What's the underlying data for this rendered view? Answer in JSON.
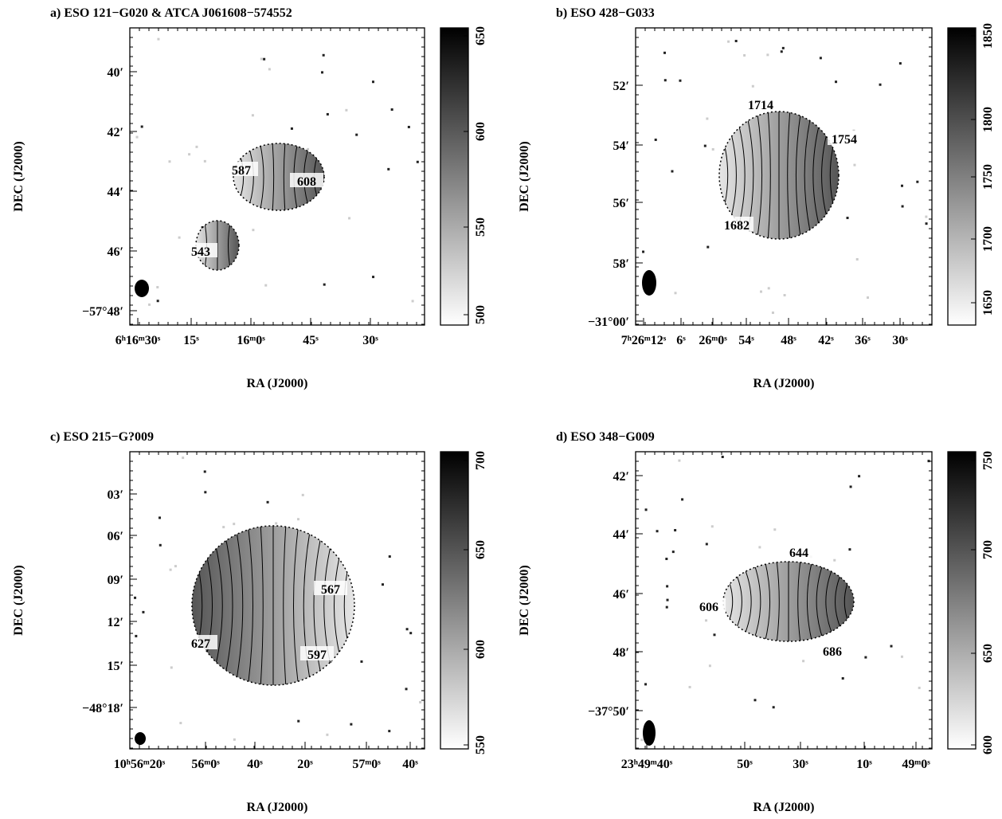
{
  "panels": [
    {
      "title": "a) ESO 121−G020 & ATCA J061608−574552",
      "y_label": "DEC (J2000)",
      "x_label": "RA (J2000)",
      "y_ticks": [
        "40′",
        "42′",
        "44′",
        "46′",
        "−57°48′"
      ],
      "x_ticks": [
        "6ʰ16ᵐ30ˢ",
        "15ˢ",
        "16ᵐ0ˢ",
        "45ˢ",
        "30ˢ"
      ],
      "colorbar_ticks": [
        650,
        600,
        550,
        500
      ],
      "contour_labels": [
        587,
        608,
        543
      ]
    },
    {
      "title": "b) ESO 428−G033",
      "y_label": "DEC (J2000)",
      "x_label": "RA (J2000)",
      "y_ticks": [
        "52′",
        "54′",
        "56′",
        "58′",
        "−31°00′"
      ],
      "x_ticks": [
        "7ʰ26ᵐ12ˢ",
        "6ˢ",
        "26ᵐ0ˢ",
        "54ˢ",
        "48ˢ",
        "42ˢ",
        "36ˢ",
        "30ˢ"
      ],
      "colorbar_ticks": [
        1850,
        1800,
        1750,
        1700,
        1650
      ],
      "contour_labels": [
        1714,
        1754,
        1682
      ]
    },
    {
      "title": "c) ESO 215−G?009",
      "y_label": "DEC (J2000)",
      "x_label": "RA (J2000)",
      "y_ticks": [
        "03′",
        "06′",
        "09′",
        "12′",
        "15′",
        "−48°18′"
      ],
      "x_ticks": [
        "10ʰ56ᵐ20ˢ",
        "56ᵐ0ˢ",
        "40ˢ",
        "20ˢ",
        "57ᵐ0ˢ",
        "40ˢ"
      ],
      "colorbar_ticks": [
        700,
        650,
        600,
        550
      ],
      "contour_labels": [
        567,
        627,
        597
      ]
    },
    {
      "title": "d) ESO 348−G009",
      "y_label": "DEC (J2000)",
      "x_label": "RA (J2000)",
      "y_ticks": [
        "42′",
        "44′",
        "46′",
        "48′",
        "−37°50′"
      ],
      "x_ticks": [
        "23ʰ49ᵐ40ˢ",
        "50ˢ",
        "30ˢ",
        "10ˢ",
        "49ᵐ0ˢ"
      ],
      "colorbar_ticks": [
        750,
        700,
        650,
        600
      ],
      "contour_labels": [
        644,
        606,
        686
      ]
    }
  ]
}
